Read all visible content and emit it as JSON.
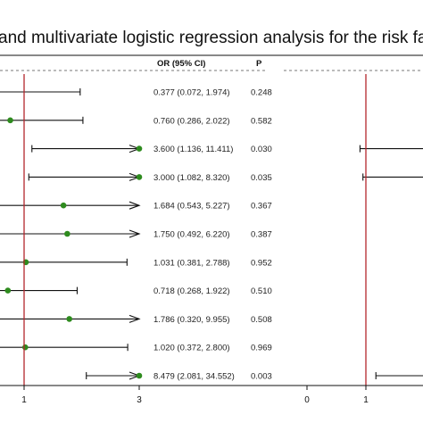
{
  "title": "and multivariate logistic regression analysis for the risk fact",
  "table_headers": {
    "or": "OR (95% CI)",
    "p": "P"
  },
  "colors": {
    "reference_line": "#b3272d",
    "point": "#2e8b1e",
    "line": "#111111",
    "dash": "#777777"
  },
  "chart_data": [
    {
      "type": "forest",
      "title": "",
      "xlabel": "",
      "ylabel": "",
      "x_ticks": [
        "1",
        "3"
      ],
      "reference_line": 1,
      "rows": [
        {
          "or": 0.377,
          "lower": 0.072,
          "upper": 1.974,
          "or_text": "0.377 (0.072, 1.974)",
          "p": "0.248",
          "arrow": false
        },
        {
          "or": 0.76,
          "lower": 0.286,
          "upper": 2.022,
          "or_text": "0.760 (0.286, 2.022)",
          "p": "0.582",
          "arrow": false
        },
        {
          "or": 3.6,
          "lower": 1.136,
          "upper": 11.411,
          "or_text": "3.600 (1.136, 11.411)",
          "p": "0.030",
          "arrow": true
        },
        {
          "or": 3.0,
          "lower": 1.082,
          "upper": 8.32,
          "or_text": "3.000 (1.082, 8.320)",
          "p": "0.035",
          "arrow": true
        },
        {
          "or": 1.684,
          "lower": 0.543,
          "upper": 5.227,
          "or_text": "1.684 (0.543, 5.227)",
          "p": "0.367",
          "arrow": true
        },
        {
          "or": 1.75,
          "lower": 0.492,
          "upper": 6.22,
          "or_text": "1.750 (0.492, 6.220)",
          "p": "0.387",
          "arrow": true
        },
        {
          "or": 1.031,
          "lower": 0.381,
          "upper": 2.788,
          "or_text": "1.031 (0.381, 2.788)",
          "p": "0.952",
          "arrow": false
        },
        {
          "or": 0.718,
          "lower": 0.268,
          "upper": 1.922,
          "or_text": "0.718 (0.268, 1.922)",
          "p": "0.510",
          "arrow": false
        },
        {
          "or": 1.786,
          "lower": 0.32,
          "upper": 9.955,
          "or_text": "1.786 (0.320, 9.955)",
          "p": "0.508",
          "arrow": true
        },
        {
          "or": 1.02,
          "lower": 0.372,
          "upper": 2.8,
          "or_text": "1.020 (0.372, 2.800)",
          "p": "0.969",
          "arrow": false
        },
        {
          "or": 8.479,
          "lower": 2.081,
          "upper": 34.552,
          "or_text": "8.479 (2.081, 34.552)",
          "p": "0.003",
          "arrow": true
        }
      ]
    },
    {
      "type": "forest",
      "title": "",
      "xlabel": "",
      "ylabel": "",
      "x_ticks": [
        "0",
        "1"
      ],
      "reference_line": 1,
      "note": "partially visible second panel (multivariate); only lower CI bounds visible",
      "rows": [
        {
          "lower": 0.9
        },
        {
          "lower": 0.95
        },
        {
          "lower": 1.17
        }
      ]
    }
  ]
}
